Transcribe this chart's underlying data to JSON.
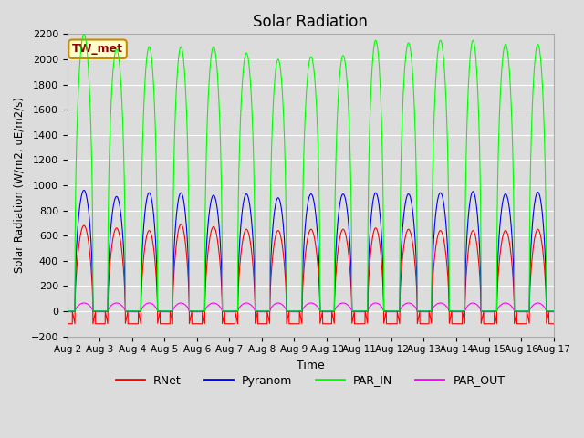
{
  "title": "Solar Radiation",
  "ylabel": "Solar Radiation (W/m2, uE/m2/s)",
  "xlabel": "Time",
  "ylim": [
    -200,
    2200
  ],
  "yticks": [
    -200,
    0,
    200,
    400,
    600,
    800,
    1000,
    1200,
    1400,
    1600,
    1800,
    2000,
    2200
  ],
  "n_days": 15,
  "bg_color": "#dcdcdc",
  "plot_bg_color": "#dcdcdc",
  "grid_color": "white",
  "colors": {
    "RNet": "#ff0000",
    "Pyranom": "#0000ff",
    "PAR_IN": "#00ff00",
    "PAR_OUT": "#ff00ff"
  },
  "legend_label": "TW_met",
  "legend_bg": "#ffffcc",
  "legend_border": "#cc8800",
  "par_in_peaks": [
    2200,
    2080,
    2100,
    2100,
    2100,
    2050,
    2000,
    2020,
    2030,
    2150,
    2130,
    2150,
    2150,
    2120,
    2120
  ],
  "pyranom_peaks": [
    960,
    910,
    940,
    940,
    920,
    930,
    900,
    930,
    930,
    940,
    930,
    940,
    950,
    930,
    945
  ],
  "rnet_peaks": [
    680,
    660,
    640,
    690,
    670,
    650,
    640,
    650,
    650,
    660,
    650,
    640,
    640,
    640,
    650
  ],
  "par_out_peak": 65,
  "rnet_night": -100,
  "day_start": 0.25,
  "day_end": 0.78,
  "points_per_day": 288
}
